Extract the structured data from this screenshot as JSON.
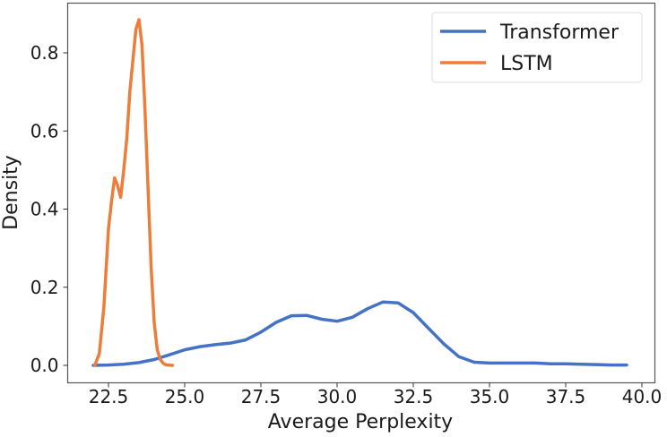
{
  "chart_data": {
    "type": "line",
    "title": "",
    "xlabel": "Average Perplexity",
    "ylabel": "Density",
    "xlim": [
      21.2,
      40.3
    ],
    "ylim": [
      -0.045,
      0.925
    ],
    "xticks": [
      22.5,
      25.0,
      27.5,
      30.0,
      32.5,
      35.0,
      37.5,
      40.0
    ],
    "xtick_labels": [
      "22.5",
      "25.0",
      "27.5",
      "30.0",
      "32.5",
      "35.0",
      "37.5",
      "40.0"
    ],
    "yticks": [
      0.0,
      0.2,
      0.4,
      0.6,
      0.8
    ],
    "ytick_labels": [
      "0.0",
      "0.2",
      "0.4",
      "0.6",
      "0.8"
    ],
    "grid": false,
    "legend_position": "upper right",
    "series": [
      {
        "name": "Transformer",
        "color": "#4472C4",
        "x": [
          22.0,
          22.5,
          23.0,
          23.5,
          24.0,
          24.5,
          25.0,
          25.5,
          26.0,
          26.5,
          27.0,
          27.5,
          28.0,
          28.5,
          29.0,
          29.5,
          30.0,
          30.5,
          31.0,
          31.5,
          32.0,
          32.5,
          33.0,
          33.5,
          34.0,
          34.5,
          35.0,
          35.5,
          36.0,
          36.5,
          37.0,
          37.5,
          38.0,
          38.5,
          39.0,
          39.5
        ],
        "values": [
          0.0,
          0.001,
          0.003,
          0.007,
          0.015,
          0.027,
          0.04,
          0.048,
          0.053,
          0.057,
          0.065,
          0.085,
          0.11,
          0.127,
          0.128,
          0.118,
          0.113,
          0.123,
          0.145,
          0.162,
          0.16,
          0.135,
          0.095,
          0.055,
          0.022,
          0.008,
          0.006,
          0.006,
          0.006,
          0.006,
          0.004,
          0.004,
          0.003,
          0.002,
          0.001,
          0.001
        ]
      },
      {
        "name": "LSTM",
        "color": "#ED7D3A",
        "x": [
          22.05,
          22.2,
          22.35,
          22.5,
          22.6,
          22.7,
          22.8,
          22.9,
          23.0,
          23.1,
          23.2,
          23.3,
          23.4,
          23.5,
          23.6,
          23.7,
          23.8,
          23.9,
          24.0,
          24.1,
          24.2,
          24.3,
          24.4,
          24.6
        ],
        "values": [
          0.0,
          0.03,
          0.15,
          0.35,
          0.42,
          0.48,
          0.46,
          0.43,
          0.5,
          0.58,
          0.7,
          0.78,
          0.86,
          0.885,
          0.82,
          0.65,
          0.45,
          0.25,
          0.11,
          0.04,
          0.015,
          0.005,
          0.001,
          0.0
        ]
      }
    ]
  }
}
